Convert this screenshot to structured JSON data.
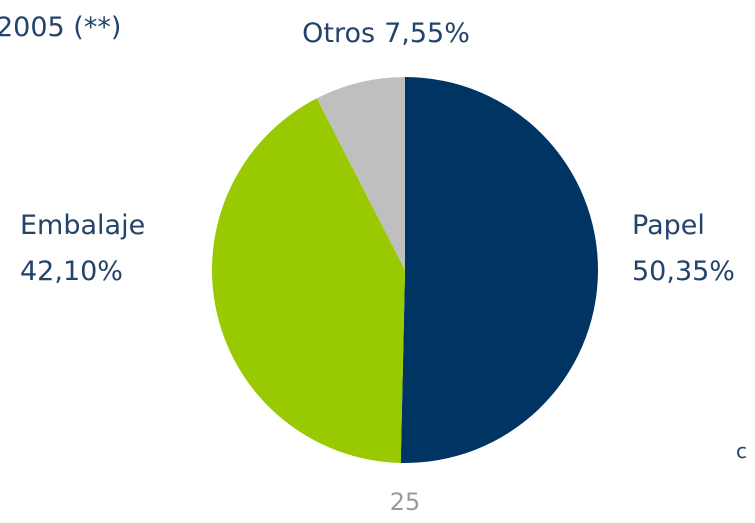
{
  "chart_data": {
    "type": "pie",
    "title": "2005 (**)",
    "categories": [
      "Papel",
      "Embalaje",
      "Otros"
    ],
    "values": [
      50.35,
      42.1,
      7.55
    ],
    "value_labels": [
      "50,35%",
      "42,10%",
      "7,55%"
    ],
    "colors": [
      "#003462",
      "#99c900",
      "#bfbfbf"
    ],
    "annotation": "c"
  },
  "page_number": "25"
}
